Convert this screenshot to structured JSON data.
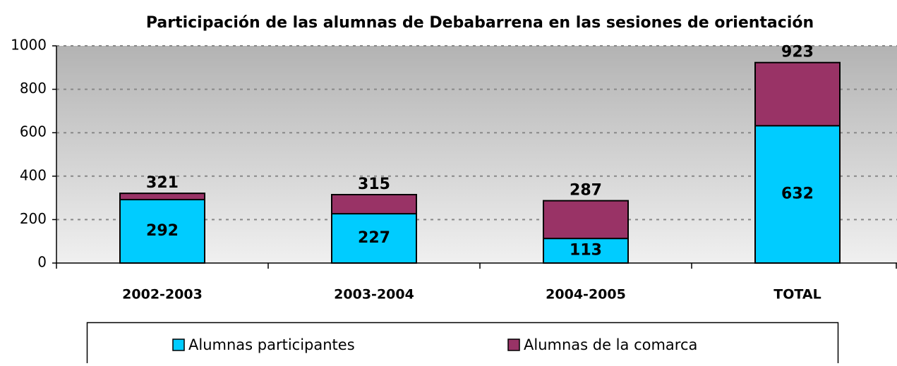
{
  "chart_data": {
    "type": "bar",
    "barmode": "overlay",
    "title": "Participación de las alumnas de Debabarrena en las sesiones de orientación",
    "categories": [
      "2002-2003",
      "2003-2004",
      "2004-2005",
      "TOTAL"
    ],
    "series": [
      {
        "name": "Alumnas participantes",
        "color": "#00ccff",
        "values": [
          292,
          227,
          113,
          632
        ]
      },
      {
        "name": "Alumnas de la comarca",
        "color": "#993366",
        "values": [
          321,
          315,
          287,
          923
        ]
      }
    ],
    "ylim": [
      0,
      1000
    ],
    "yticks": [
      0,
      200,
      400,
      600,
      800,
      1000
    ],
    "grid": true
  }
}
